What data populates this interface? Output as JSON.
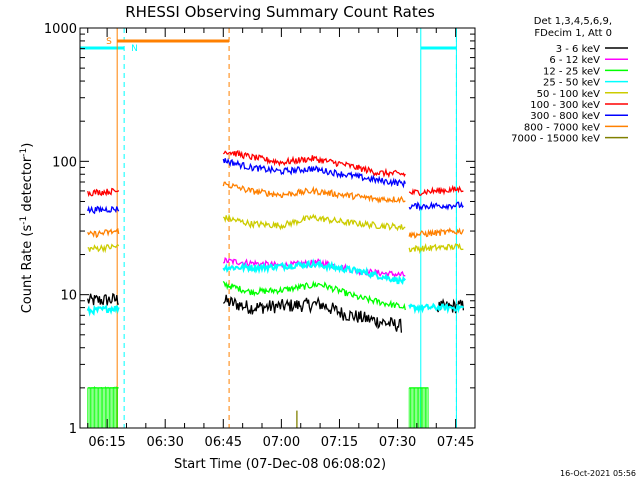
{
  "chart_data": {
    "type": "line",
    "title": "RHESSI Observing Summary Count Rates",
    "xlabel": "Start Time (07-Dec-08 06:08:02)",
    "ylabel_main": "Count Rate (s",
    "ylabel_sup1": "-1",
    "ylabel_mid": " detector",
    "ylabel_sup2": "-1",
    "ylabel_end": ")",
    "yscale": "log",
    "ylim": [
      1,
      1000
    ],
    "xlim_min": [
      368.0,
      470.0
    ],
    "yticks": [
      1,
      10,
      100,
      1000
    ],
    "ytick_labels": [
      "1",
      "10",
      "100",
      "1000"
    ],
    "xticks_min": [
      375,
      390,
      405,
      420,
      435,
      450,
      465
    ],
    "xtick_labels": [
      "06:15",
      "06:30",
      "06:45",
      "07:00",
      "07:15",
      "07:30",
      "07:45"
    ],
    "legend_header": [
      "Det 1,3,4,5,6,9,",
      "FDecim 1, Att 0"
    ],
    "series": [
      {
        "name": "3 - 6 keV",
        "color": "#000000",
        "segments": [
          [
            [
              370,
              9
            ],
            [
              378,
              9.2
            ]
          ],
          [
            [
              405,
              9
            ],
            [
              412,
              8
            ],
            [
              420,
              8.2
            ],
            [
              430,
              8.5
            ],
            [
              436,
              7.2
            ],
            [
              443,
              6.5
            ],
            [
              451,
              5.8
            ]
          ],
          [
            [
              460,
              8
            ],
            [
              467,
              8.2
            ]
          ]
        ]
      },
      {
        "name": "6 - 12 keV",
        "color": "#ff00ff",
        "segments": [
          [
            [
              405,
              18
            ],
            [
              420,
              16.5
            ],
            [
              430,
              17.5
            ],
            [
              440,
              15
            ],
            [
              452,
              14
            ]
          ]
        ]
      },
      {
        "name": "12 - 25 keV",
        "color": "#00ff00",
        "segments": [
          [
            [
              370,
              2
            ],
            [
              378,
              2
            ]
          ],
          [
            [
              405,
              12
            ],
            [
              412,
              10.5
            ],
            [
              420,
              10.8
            ],
            [
              430,
              12
            ],
            [
              440,
              9.5
            ],
            [
              452,
              8
            ]
          ],
          [
            [
              453,
              2
            ],
            [
              458,
              2
            ]
          ]
        ]
      },
      {
        "name": "25 - 50 keV",
        "color": "#00ffff",
        "segments": [
          [
            [
              370,
              7.5
            ],
            [
              378,
              8
            ]
          ],
          [
            [
              405,
              16
            ],
            [
              415,
              16
            ],
            [
              428,
              17
            ],
            [
              440,
              15
            ],
            [
              452,
              12.5
            ]
          ],
          [
            [
              453,
              8
            ],
            [
              467,
              8
            ]
          ]
        ]
      },
      {
        "name": "50 - 100 keV",
        "color": "#cccc00",
        "segments": [
          [
            [
              370,
              22
            ],
            [
              378,
              23
            ]
          ],
          [
            [
              405,
              38
            ],
            [
              412,
              34
            ],
            [
              420,
              33
            ],
            [
              428,
              38
            ],
            [
              436,
              35
            ],
            [
              445,
              33
            ],
            [
              452,
              32
            ]
          ],
          [
            [
              453,
              22
            ],
            [
              467,
              23
            ]
          ]
        ]
      },
      {
        "name": "100 - 300 keV",
        "color": "#ff0000",
        "segments": [
          [
            [
              370,
              58
            ],
            [
              378,
              60
            ]
          ],
          [
            [
              405,
              120
            ],
            [
              412,
              108
            ],
            [
              420,
              98
            ],
            [
              428,
              105
            ],
            [
              436,
              95
            ],
            [
              445,
              82
            ],
            [
              452,
              80
            ]
          ],
          [
            [
              453,
              58
            ],
            [
              467,
              62
            ]
          ]
        ]
      },
      {
        "name": "300 - 800 keV",
        "color": "#0000ff",
        "segments": [
          [
            [
              370,
              43
            ],
            [
              378,
              44
            ]
          ],
          [
            [
              405,
              102
            ],
            [
              412,
              90
            ],
            [
              420,
              84
            ],
            [
              428,
              88
            ],
            [
              436,
              80
            ],
            [
              445,
              72
            ],
            [
              452,
              68
            ]
          ],
          [
            [
              453,
              46
            ],
            [
              467,
              47
            ]
          ]
        ]
      },
      {
        "name": "800 - 7000 keV",
        "color": "#ff8000",
        "segments": [
          [
            [
              370,
              28
            ],
            [
              378,
              30
            ]
          ],
          [
            [
              405,
              68
            ],
            [
              412,
              60
            ],
            [
              420,
              56
            ],
            [
              428,
              60
            ],
            [
              436,
              56
            ],
            [
              445,
              52
            ],
            [
              452,
              52
            ]
          ],
          [
            [
              453,
              28
            ],
            [
              467,
              30
            ]
          ]
        ]
      },
      {
        "name": "7000 - 15000 keV",
        "color": "#808000",
        "segments": [
          [
            [
              424,
              1
            ],
            [
              424,
              1.35
            ]
          ]
        ]
      }
    ],
    "saa_periods": [
      {
        "label": "S",
        "start": 377.6,
        "end": 406.5,
        "color": "#ff8000"
      }
    ],
    "night_periods": [
      {
        "label": "N",
        "start": 379.4,
        "end": 456.0,
        "color": "#00ffff"
      },
      {
        "label": "",
        "start": 465.2,
        "end": 470.0,
        "color": "#00ffff"
      }
    ],
    "night_before": {
      "start": 368.0,
      "end": 379.4,
      "color": "#00ffff"
    }
  },
  "footer": {
    "timestamp": "16-Oct-2021 05:56"
  }
}
